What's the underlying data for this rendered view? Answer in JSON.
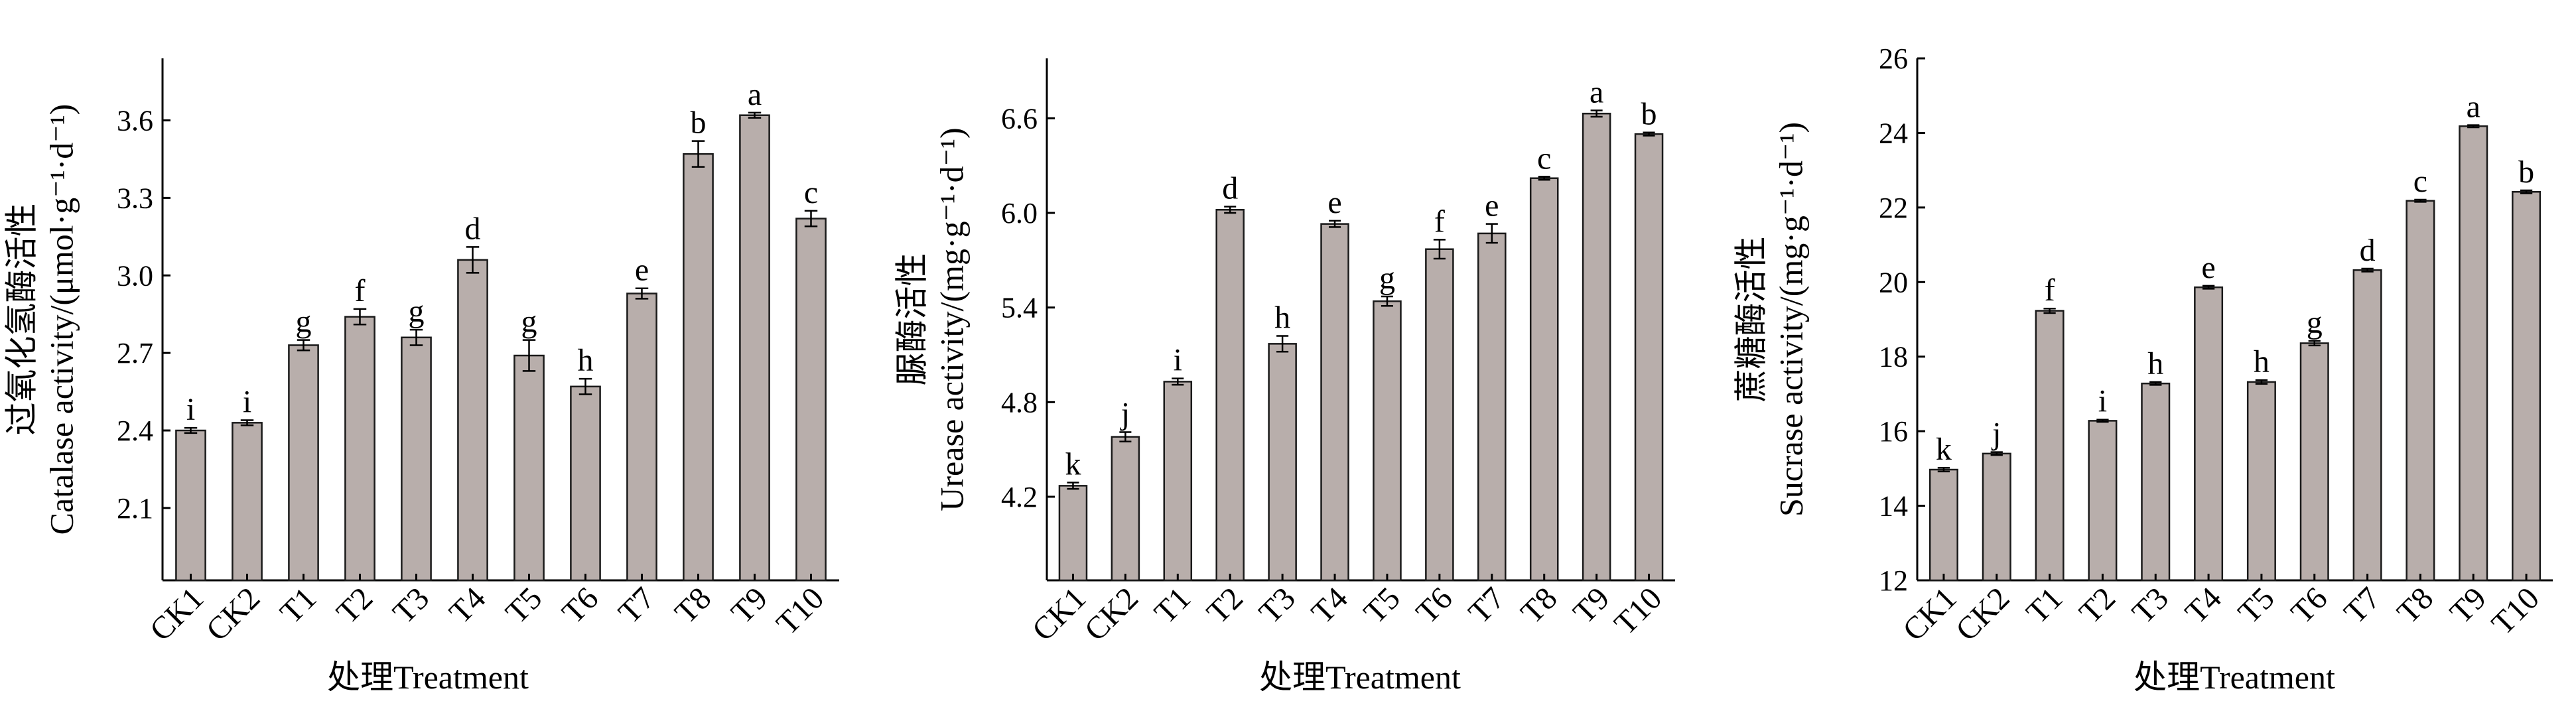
{
  "chart_data": [
    {
      "type": "bar",
      "ylabel_line1": "过氧化氢酶活性",
      "ylabel_line2": "Catalase activity/(μmol·g⁻¹·d⁻¹)",
      "xlabel": "处理Treatment",
      "categories": [
        "CK1",
        "CK2",
        "T1",
        "T2",
        "T3",
        "T4",
        "T5",
        "T6",
        "T7",
        "T8",
        "T9",
        "T10"
      ],
      "values": [
        2.4,
        2.43,
        2.73,
        2.84,
        2.76,
        3.06,
        2.69,
        2.57,
        2.93,
        3.47,
        3.62,
        3.22
      ],
      "errors": [
        0.01,
        0.01,
        0.02,
        0.03,
        0.03,
        0.05,
        0.06,
        0.03,
        0.02,
        0.05,
        0.01,
        0.03
      ],
      "letters": [
        "i",
        "i",
        "g",
        "f",
        "g",
        "d",
        "g",
        "h",
        "e",
        "b",
        "a",
        "c"
      ],
      "ylim": [
        1.82,
        3.84
      ],
      "yticks": [
        2.1,
        2.4,
        2.7,
        3.0,
        3.3,
        3.6
      ],
      "ytick_labels": [
        "2.1",
        "2.4",
        "2.7",
        "3.0",
        "3.3",
        "3.6"
      ]
    },
    {
      "type": "bar",
      "ylabel_line1": "脲酶活性",
      "ylabel_line2": "Urease activity/(mg·g⁻¹·d⁻¹)",
      "xlabel": "处理Treatment",
      "categories": [
        "CK1",
        "CK2",
        "T1",
        "T2",
        "T3",
        "T4",
        "T5",
        "T6",
        "T7",
        "T8",
        "T9",
        "T10"
      ],
      "values": [
        4.27,
        4.58,
        4.93,
        6.02,
        5.17,
        5.93,
        5.44,
        5.77,
        5.87,
        6.22,
        6.63,
        6.5
      ],
      "errors": [
        0.02,
        0.03,
        0.02,
        0.02,
        0.05,
        0.02,
        0.03,
        0.06,
        0.06,
        0.01,
        0.02,
        0.01
      ],
      "letters": [
        "k",
        "j",
        "i",
        "d",
        "h",
        "e",
        "g",
        "f",
        "e",
        "c",
        "a",
        "b"
      ],
      "ylim": [
        3.67,
        6.98
      ],
      "yticks": [
        4.2,
        4.8,
        5.4,
        6.0,
        6.6
      ],
      "ytick_labels": [
        "4.2",
        "4.8",
        "5.4",
        "6.0",
        "6.6"
      ]
    },
    {
      "type": "bar",
      "ylabel_line1": "蔗糖酶活性",
      "ylabel_line2": "Sucrase activity/(mg·g⁻¹·d⁻¹)",
      "xlabel": "处理Treatment",
      "categories": [
        "CK1",
        "CK2",
        "T1",
        "T2",
        "T3",
        "T4",
        "T5",
        "T6",
        "T7",
        "T8",
        "T9",
        "T10"
      ],
      "values": [
        14.97,
        15.4,
        19.23,
        16.28,
        17.28,
        19.86,
        17.32,
        18.36,
        20.32,
        22.18,
        24.18,
        22.42
      ],
      "errors": [
        0.05,
        0.04,
        0.06,
        0.03,
        0.04,
        0.04,
        0.05,
        0.06,
        0.04,
        0.03,
        0.03,
        0.04
      ],
      "letters": [
        "k",
        "j",
        "f",
        "i",
        "h",
        "e",
        "h",
        "g",
        "d",
        "c",
        "a",
        "b"
      ],
      "ylim": [
        12,
        26
      ],
      "yticks": [
        12,
        14,
        16,
        18,
        20,
        22,
        24,
        26
      ],
      "ytick_labels": [
        "12",
        "14",
        "16",
        "18",
        "20",
        "22",
        "24",
        "26"
      ]
    }
  ]
}
